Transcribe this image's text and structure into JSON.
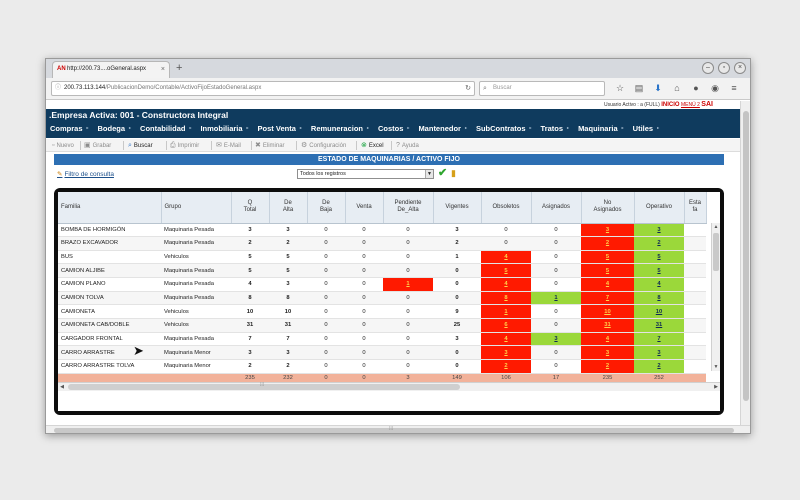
{
  "browser": {
    "tab_title": "http://200.73....oGeneral.aspx",
    "favicon": "AN",
    "new_tab": "+",
    "url_host": "200.73.113.144",
    "url_path": "/PublicacionDemo/Contable/ActivoFijoEstadoGeneral.aspx",
    "search_placeholder": "Buscar",
    "nav_icons": [
      "star-icon",
      "clipboard-icon",
      "download-icon",
      "home-icon",
      "chat-icon",
      "pocket-icon",
      "menu-icon"
    ]
  },
  "userbar": {
    "user": "Usuario Activo : a (FULL)",
    "inicio": "INICIO",
    "menu": "MENÚ 2",
    "salir": "SAI"
  },
  "header": {
    "company": ".Empresa Activa: 001 - Constructora Integral",
    "menu": [
      "Compras",
      "Bodega",
      "Contabilidad",
      "Inmobiliaria",
      "Post Venta",
      "Remuneracion",
      "Costos",
      "Mantenedor",
      "SubContratos",
      "Tratos",
      "Maquinaria",
      "Utiles"
    ]
  },
  "toolbar": {
    "nuevo": "Nuevo",
    "grabar": "Grabar",
    "buscar": "Buscar",
    "imprimir": "Imprimir",
    "email": "E-Mail",
    "eliminar": "Eliminar",
    "configuracion": "Configuración",
    "excel": "Excel",
    "ayuda": "Ayuda"
  },
  "title": "ESTADO DE MAQUINARIAS / ACTIVO FIJO",
  "filter": {
    "link": "Filtro de consulta",
    "select_value": "Todos los registros"
  },
  "grid": {
    "headers": [
      "Familia",
      "Grupo",
      "Q\nTotal",
      "De\nAlta",
      "De\nBaja",
      "Venta",
      "Pendiente\nDe_Alta",
      "Vigentes",
      "Obsoletos",
      "Asignados",
      "No\nAsignados",
      "Operativo",
      "Esta\nfa"
    ],
    "rows": [
      [
        "BOMBA DE HORMIGÓN",
        "Maquinaria Pesada",
        "3",
        "3",
        "0",
        "0",
        "0",
        "3",
        "0",
        "0",
        "3",
        "3"
      ],
      [
        "BRAZO EXCAVADOR",
        "Maquinaria Pesada",
        "2",
        "2",
        "0",
        "0",
        "0",
        "2",
        "0",
        "0",
        "2",
        "2"
      ],
      [
        "BUS",
        "Vehiculos",
        "5",
        "5",
        "0",
        "0",
        "0",
        "1",
        "4",
        "0",
        "5",
        "5"
      ],
      [
        "CAMION ALJIBE",
        "Maquinaria Pesada",
        "5",
        "5",
        "0",
        "0",
        "0",
        "0",
        "5",
        "0",
        "5",
        "5"
      ],
      [
        "CAMION PLANO",
        "Maquinaria Pesada",
        "4",
        "3",
        "0",
        "0",
        "1",
        "0",
        "4",
        "0",
        "4",
        "4"
      ],
      [
        "CAMION TOLVA",
        "Maquinaria Pesada",
        "8",
        "8",
        "0",
        "0",
        "0",
        "0",
        "8",
        "1",
        "7",
        "8"
      ],
      [
        "CAMIONETA",
        "Vehiculos",
        "10",
        "10",
        "0",
        "0",
        "0",
        "9",
        "1",
        "0",
        "10",
        "10"
      ],
      [
        "CAMIONETA CAB/DOBLE",
        "Vehiculos",
        "31",
        "31",
        "0",
        "0",
        "0",
        "25",
        "6",
        "0",
        "31",
        "31"
      ],
      [
        "CARGADOR FRONTAL",
        "Maquinaria Pesada",
        "7",
        "7",
        "0",
        "0",
        "0",
        "3",
        "4",
        "3",
        "4",
        "7"
      ],
      [
        "CARRO ARRASTRE",
        "Maquinaria Menor",
        "3",
        "3",
        "0",
        "0",
        "0",
        "0",
        "3",
        "0",
        "3",
        "3"
      ],
      [
        "CARRO ARRASTRE TOLVA",
        "Maquinaria Menor",
        "2",
        "2",
        "0",
        "0",
        "0",
        "0",
        "2",
        "0",
        "2",
        "2"
      ]
    ],
    "totals": [
      "",
      "",
      "235",
      "232",
      "0",
      "0",
      "3",
      "149",
      "106",
      "17",
      "235",
      "252"
    ]
  },
  "colors": {
    "header_bg": "#0f3b5e",
    "title_bg": "#2d6fb3",
    "red": "#ff1a00",
    "green": "#9bd83a",
    "total_bg": "#f2b29a"
  }
}
